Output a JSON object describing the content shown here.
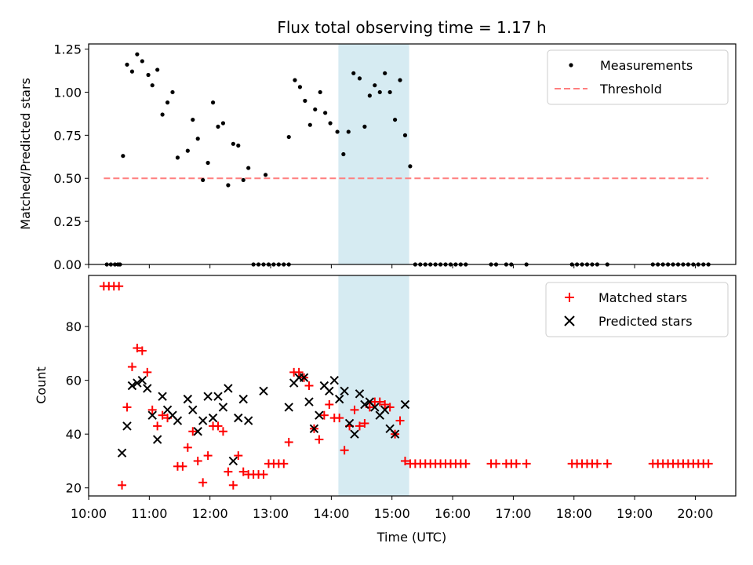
{
  "chart_data": [
    {
      "type": "scatter",
      "title": "Flux total observing time = 1.17 h",
      "xlabel": "",
      "ylabel": "Matched/Predicted stars",
      "xlim": [
        "10:00",
        "20:40"
      ],
      "ylim": [
        0,
        1.28
      ],
      "yticks": [
        "0.00",
        "0.25",
        "0.50",
        "0.75",
        "1.00",
        "1.25"
      ],
      "highlight_span": [
        "14:07",
        "15:17"
      ],
      "legend": {
        "position": "top-right",
        "entries": [
          "Measurements",
          "Threshold"
        ]
      },
      "series": [
        {
          "name": "Measurements",
          "marker": "dot",
          "color": "#000000",
          "points": [
            [
              "10:18",
              0
            ],
            [
              "10:22",
              0
            ],
            [
              "10:26",
              0
            ],
            [
              "10:29",
              0
            ],
            [
              "10:31",
              0
            ],
            [
              "10:34",
              0.63
            ],
            [
              "10:38",
              1.16
            ],
            [
              "10:43",
              1.12
            ],
            [
              "10:48",
              1.22
            ],
            [
              "10:53",
              1.18
            ],
            [
              "10:59",
              1.1
            ],
            [
              "11:03",
              1.04
            ],
            [
              "11:08",
              1.13
            ],
            [
              "11:13",
              0.87
            ],
            [
              "11:18",
              0.94
            ],
            [
              "11:23",
              1.0
            ],
            [
              "11:28",
              0.62
            ],
            [
              "11:38",
              0.66
            ],
            [
              "11:43",
              0.84
            ],
            [
              "11:48",
              0.73
            ],
            [
              "11:53",
              0.49
            ],
            [
              "11:58",
              0.59
            ],
            [
              "12:03",
              0.94
            ],
            [
              "12:08",
              0.8
            ],
            [
              "12:13",
              0.82
            ],
            [
              "12:18",
              0.46
            ],
            [
              "12:23",
              0.7
            ],
            [
              "12:28",
              0.69
            ],
            [
              "12:33",
              0.49
            ],
            [
              "12:38",
              0.56
            ],
            [
              "12:43",
              0
            ],
            [
              "12:48",
              0
            ],
            [
              "12:53",
              0
            ],
            [
              "12:58",
              0
            ],
            [
              "13:03",
              0
            ],
            [
              "13:08",
              0
            ],
            [
              "13:13",
              0
            ],
            [
              "13:18",
              0
            ],
            [
              "12:55",
              0.52
            ],
            [
              "13:18",
              0.74
            ],
            [
              "13:24",
              1.07
            ],
            [
              "13:29",
              1.03
            ],
            [
              "13:34",
              0.95
            ],
            [
              "13:39",
              0.81
            ],
            [
              "13:44",
              0.9
            ],
            [
              "13:49",
              1.0
            ],
            [
              "13:54",
              0.88
            ],
            [
              "13:59",
              0.82
            ],
            [
              "14:06",
              0.77
            ],
            [
              "14:12",
              0.64
            ],
            [
              "14:17",
              0.77
            ],
            [
              "14:22",
              1.11
            ],
            [
              "14:28",
              1.08
            ],
            [
              "14:33",
              0.8
            ],
            [
              "14:38",
              0.98
            ],
            [
              "14:43",
              1.04
            ],
            [
              "14:48",
              1.0
            ],
            [
              "14:53",
              1.11
            ],
            [
              "14:58",
              1.0
            ],
            [
              "15:03",
              0.84
            ],
            [
              "15:08",
              1.07
            ],
            [
              "15:13",
              0.75
            ],
            [
              "15:18",
              0.57
            ],
            [
              "15:23",
              0
            ],
            [
              "15:28",
              0
            ],
            [
              "15:33",
              0
            ],
            [
              "15:38",
              0
            ],
            [
              "15:43",
              0
            ],
            [
              "15:48",
              0
            ],
            [
              "15:53",
              0
            ],
            [
              "15:58",
              0
            ],
            [
              "16:03",
              0
            ],
            [
              "16:08",
              0
            ],
            [
              "16:13",
              0
            ],
            [
              "16:38",
              0
            ],
            [
              "16:43",
              0
            ],
            [
              "16:53",
              0
            ],
            [
              "16:58",
              0
            ],
            [
              "17:13",
              0
            ],
            [
              "17:58",
              0
            ],
            [
              "18:03",
              0
            ],
            [
              "18:08",
              0
            ],
            [
              "18:13",
              0
            ],
            [
              "18:18",
              0
            ],
            [
              "18:23",
              0
            ],
            [
              "18:33",
              0
            ],
            [
              "19:18",
              0
            ],
            [
              "19:23",
              0
            ],
            [
              "19:28",
              0
            ],
            [
              "19:33",
              0
            ],
            [
              "19:38",
              0
            ],
            [
              "19:43",
              0
            ],
            [
              "19:48",
              0
            ],
            [
              "19:53",
              0
            ],
            [
              "19:58",
              0
            ],
            [
              "20:03",
              0
            ],
            [
              "20:08",
              0
            ],
            [
              "20:13",
              0
            ]
          ]
        },
        {
          "name": "Threshold",
          "type": "line",
          "style": "dashed",
          "color": "#ff7f7f",
          "points": [
            [
              "10:15",
              0.5
            ],
            [
              "20:13",
              0.5
            ]
          ]
        }
      ]
    },
    {
      "type": "scatter",
      "title": "",
      "xlabel": "Time (UTC)",
      "ylabel": "Count",
      "xlim": [
        "10:00",
        "20:40"
      ],
      "ylim": [
        17,
        99
      ],
      "yticks": [
        "20",
        "40",
        "60",
        "80"
      ],
      "xticks": [
        "10:00",
        "11:00",
        "12:00",
        "13:00",
        "14:00",
        "15:00",
        "16:00",
        "17:00",
        "18:00",
        "19:00",
        "20:00"
      ],
      "highlight_span": [
        "14:07",
        "15:17"
      ],
      "legend": {
        "position": "top-right",
        "entries": [
          "Matched stars",
          "Predicted stars"
        ]
      },
      "series": [
        {
          "name": "Matched stars",
          "marker": "plus",
          "color": "#ff0000",
          "points": [
            [
              "10:15",
              95
            ],
            [
              "10:20",
              95
            ],
            [
              "10:25",
              95
            ],
            [
              "10:30",
              95
            ],
            [
              "10:33",
              21
            ],
            [
              "10:38",
              50
            ],
            [
              "10:43",
              65
            ],
            [
              "10:48",
              72
            ],
            [
              "10:53",
              71
            ],
            [
              "10:58",
              63
            ],
            [
              "11:03",
              49
            ],
            [
              "11:08",
              43
            ],
            [
              "11:13",
              47
            ],
            [
              "11:18",
              46
            ],
            [
              "11:28",
              28
            ],
            [
              "11:33",
              28
            ],
            [
              "11:38",
              35
            ],
            [
              "11:43",
              41
            ],
            [
              "11:48",
              30
            ],
            [
              "11:53",
              22
            ],
            [
              "11:58",
              32
            ],
            [
              "12:03",
              43
            ],
            [
              "12:08",
              43
            ],
            [
              "12:13",
              41
            ],
            [
              "12:18",
              26
            ],
            [
              "12:23",
              21
            ],
            [
              "12:28",
              32
            ],
            [
              "12:33",
              26
            ],
            [
              "12:38",
              25
            ],
            [
              "12:43",
              25
            ],
            [
              "12:48",
              25
            ],
            [
              "12:53",
              25
            ],
            [
              "12:58",
              29
            ],
            [
              "13:03",
              29
            ],
            [
              "13:08",
              29
            ],
            [
              "13:13",
              29
            ],
            [
              "13:18",
              37
            ],
            [
              "13:23",
              63
            ],
            [
              "13:28",
              63
            ],
            [
              "13:33",
              61
            ],
            [
              "13:38",
              58
            ],
            [
              "13:43",
              42
            ],
            [
              "13:48",
              38
            ],
            [
              "13:53",
              47
            ],
            [
              "13:58",
              51
            ],
            [
              "14:03",
              46
            ],
            [
              "14:08",
              46
            ],
            [
              "14:13",
              34
            ],
            [
              "14:18",
              43
            ],
            [
              "14:23",
              49
            ],
            [
              "14:28",
              43
            ],
            [
              "14:33",
              44
            ],
            [
              "14:38",
              50
            ],
            [
              "14:43",
              52
            ],
            [
              "14:48",
              52
            ],
            [
              "14:53",
              51
            ],
            [
              "14:58",
              50
            ],
            [
              "15:03",
              40
            ],
            [
              "15:08",
              45
            ],
            [
              "15:13",
              30
            ],
            [
              "15:18",
              29
            ],
            [
              "15:23",
              29
            ],
            [
              "15:28",
              29
            ],
            [
              "15:33",
              29
            ],
            [
              "15:38",
              29
            ],
            [
              "15:43",
              29
            ],
            [
              "15:48",
              29
            ],
            [
              "15:53",
              29
            ],
            [
              "15:58",
              29
            ],
            [
              "16:03",
              29
            ],
            [
              "16:08",
              29
            ],
            [
              "16:13",
              29
            ],
            [
              "16:38",
              29
            ],
            [
              "16:43",
              29
            ],
            [
              "16:53",
              29
            ],
            [
              "16:58",
              29
            ],
            [
              "17:03",
              29
            ],
            [
              "17:13",
              29
            ],
            [
              "17:58",
              29
            ],
            [
              "18:03",
              29
            ],
            [
              "18:08",
              29
            ],
            [
              "18:13",
              29
            ],
            [
              "18:18",
              29
            ],
            [
              "18:23",
              29
            ],
            [
              "18:33",
              29
            ],
            [
              "19:18",
              29
            ],
            [
              "19:23",
              29
            ],
            [
              "19:28",
              29
            ],
            [
              "19:33",
              29
            ],
            [
              "19:38",
              29
            ],
            [
              "19:43",
              29
            ],
            [
              "19:48",
              29
            ],
            [
              "19:53",
              29
            ],
            [
              "19:58",
              29
            ],
            [
              "20:03",
              29
            ],
            [
              "20:08",
              29
            ],
            [
              "20:13",
              29
            ]
          ]
        },
        {
          "name": "Predicted stars",
          "marker": "x",
          "color": "#000000",
          "points": [
            [
              "10:33",
              33
            ],
            [
              "10:38",
              43
            ],
            [
              "10:43",
              58
            ],
            [
              "10:48",
              59
            ],
            [
              "10:53",
              60
            ],
            [
              "10:58",
              57
            ],
            [
              "11:03",
              47
            ],
            [
              "11:08",
              38
            ],
            [
              "11:13",
              54
            ],
            [
              "11:18",
              49
            ],
            [
              "11:23",
              47
            ],
            [
              "11:28",
              45
            ],
            [
              "11:38",
              53
            ],
            [
              "11:43",
              49
            ],
            [
              "11:48",
              41
            ],
            [
              "11:53",
              45
            ],
            [
              "11:58",
              54
            ],
            [
              "12:03",
              46
            ],
            [
              "12:08",
              54
            ],
            [
              "12:13",
              50
            ],
            [
              "12:18",
              57
            ],
            [
              "12:23",
              30
            ],
            [
              "12:28",
              46
            ],
            [
              "12:33",
              53
            ],
            [
              "12:38",
              45
            ],
            [
              "12:53",
              56
            ],
            [
              "13:18",
              50
            ],
            [
              "13:23",
              59
            ],
            [
              "13:28",
              61
            ],
            [
              "13:33",
              61
            ],
            [
              "13:38",
              52
            ],
            [
              "13:43",
              42
            ],
            [
              "13:48",
              47
            ],
            [
              "13:53",
              58
            ],
            [
              "13:58",
              56
            ],
            [
              "14:03",
              60
            ],
            [
              "14:08",
              53
            ],
            [
              "14:13",
              56
            ],
            [
              "14:18",
              44
            ],
            [
              "14:23",
              40
            ],
            [
              "14:28",
              55
            ],
            [
              "14:33",
              51
            ],
            [
              "14:38",
              52
            ],
            [
              "14:43",
              50
            ],
            [
              "14:48",
              47
            ],
            [
              "14:53",
              49
            ],
            [
              "14:58",
              42
            ],
            [
              "15:03",
              40
            ],
            [
              "15:13",
              51
            ]
          ]
        }
      ]
    }
  ]
}
